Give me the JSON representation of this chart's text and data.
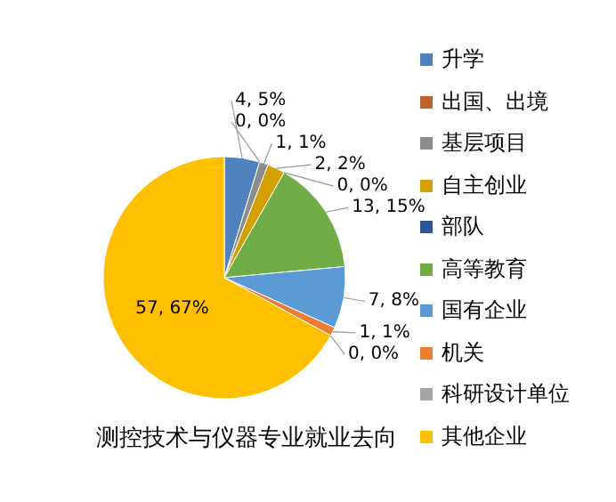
{
  "chart_data": {
    "type": "pie",
    "title": "测控技术与仪器专业就业去向",
    "categories": [
      "升学",
      "出国、出境",
      "基层项目",
      "自主创业",
      "部队",
      "高等教育",
      "国有企业",
      "机关",
      "科研设计单位",
      "其他企业"
    ],
    "values": [
      4,
      0,
      1,
      2,
      0,
      13,
      7,
      1,
      0,
      57
    ],
    "colors": [
      "#4f81bd",
      "#c0622d",
      "#8c8c8c",
      "#d4a000",
      "#2f5597",
      "#70ad47",
      "#5b9bd5",
      "#ed7d31",
      "#a5a5a5",
      "#ffc000"
    ],
    "value_labels": [
      "4, 5%",
      "0, 0%",
      "1, 1%",
      "2, 2%",
      "0, 0%",
      "13, 15%",
      "7, 8%",
      "1, 1%",
      "0, 0%",
      "57, 67%"
    ],
    "legend": "right"
  }
}
